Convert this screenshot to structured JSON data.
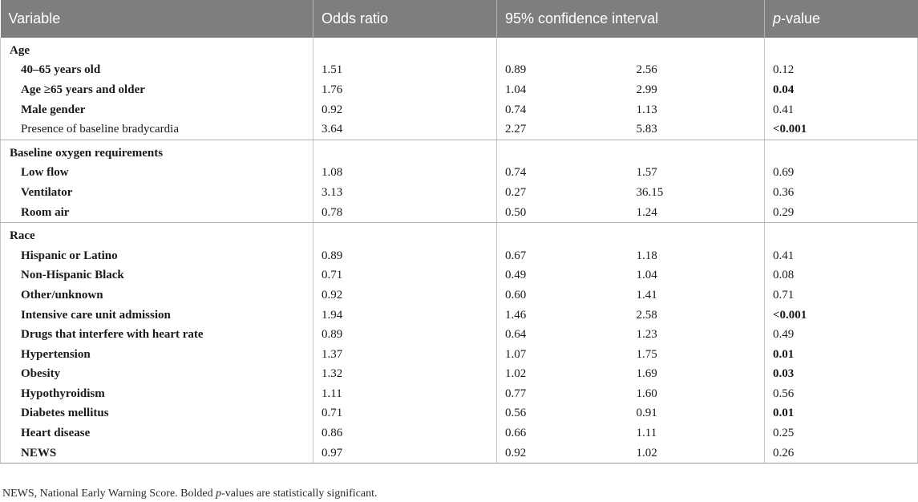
{
  "header": {
    "variable": "Variable",
    "odds_ratio": "Odds ratio",
    "ci": "95% confidence interval",
    "p_italic": "p",
    "p_rest": "-value"
  },
  "groups": [
    {
      "rows": [
        {
          "label": "Age",
          "or": "",
          "lo": "",
          "hi": "",
          "p": "",
          "label_bold": true,
          "indent": false,
          "p_bold": false
        },
        {
          "label": "40–65 years old",
          "or": "1.51",
          "lo": "0.89",
          "hi": "2.56",
          "p": "0.12",
          "label_bold": true,
          "indent": true,
          "p_bold": false
        },
        {
          "label": "Age ≥65 years and older",
          "or": "1.76",
          "lo": "1.04",
          "hi": "2.99",
          "p": "0.04",
          "label_bold": true,
          "indent": true,
          "p_bold": true
        },
        {
          "label": "Male gender",
          "or": "0.92",
          "lo": "0.74",
          "hi": "1.13",
          "p": "0.41",
          "label_bold": true,
          "indent": true,
          "p_bold": false
        },
        {
          "label": "Presence of baseline bradycardia",
          "or": "3.64",
          "lo": "2.27",
          "hi": "5.83",
          "p": "<0.001",
          "label_bold": false,
          "indent": true,
          "p_bold": true
        }
      ]
    },
    {
      "rows": [
        {
          "label": "Baseline oxygen requirements",
          "or": "",
          "lo": "",
          "hi": "",
          "p": "",
          "label_bold": true,
          "indent": false,
          "p_bold": false
        },
        {
          "label": "Low flow",
          "or": "1.08",
          "lo": "0.74",
          "hi": "1.57",
          "p": "0.69",
          "label_bold": true,
          "indent": true,
          "p_bold": false
        },
        {
          "label": "Ventilator",
          "or": "3.13",
          "lo": "0.27",
          "hi": "36.15",
          "p": "0.36",
          "label_bold": true,
          "indent": true,
          "p_bold": false
        },
        {
          "label": "Room air",
          "or": "0.78",
          "lo": "0.50",
          "hi": "1.24",
          "p": "0.29",
          "label_bold": true,
          "indent": true,
          "p_bold": false
        }
      ]
    },
    {
      "rows": [
        {
          "label": "Race",
          "or": "",
          "lo": "",
          "hi": "",
          "p": "",
          "label_bold": true,
          "indent": false,
          "p_bold": false
        },
        {
          "label": "Hispanic or Latino",
          "or": "0.89",
          "lo": "0.67",
          "hi": "1.18",
          "p": "0.41",
          "label_bold": true,
          "indent": true,
          "p_bold": false
        },
        {
          "label": "Non-Hispanic Black",
          "or": "0.71",
          "lo": "0.49",
          "hi": "1.04",
          "p": "0.08",
          "label_bold": true,
          "indent": true,
          "p_bold": false
        },
        {
          "label": "Other/unknown",
          "or": "0.92",
          "lo": "0.60",
          "hi": "1.41",
          "p": "0.71",
          "label_bold": true,
          "indent": true,
          "p_bold": false
        },
        {
          "label": "Intensive care unit admission",
          "or": "1.94",
          "lo": "1.46",
          "hi": "2.58",
          "p": "<0.001",
          "label_bold": true,
          "indent": true,
          "p_bold": true
        },
        {
          "label": "Drugs that interfere with heart rate",
          "or": "0.89",
          "lo": "0.64",
          "hi": "1.23",
          "p": "0.49",
          "label_bold": true,
          "indent": true,
          "p_bold": false
        },
        {
          "label": "Hypertension",
          "or": "1.37",
          "lo": "1.07",
          "hi": "1.75",
          "p": "0.01",
          "label_bold": true,
          "indent": true,
          "p_bold": true
        },
        {
          "label": "Obesity",
          "or": "1.32",
          "lo": "1.02",
          "hi": "1.69",
          "p": "0.03",
          "label_bold": true,
          "indent": true,
          "p_bold": true
        },
        {
          "label": "Hypothyroidism",
          "or": "1.11",
          "lo": "0.77",
          "hi": "1.60",
          "p": "0.56",
          "label_bold": true,
          "indent": true,
          "p_bold": false
        },
        {
          "label": "Diabetes mellitus",
          "or": "0.71",
          "lo": "0.56",
          "hi": "0.91",
          "p": "0.01",
          "label_bold": true,
          "indent": true,
          "p_bold": true
        },
        {
          "label": "Heart disease",
          "or": "0.86",
          "lo": "0.66",
          "hi": "1.11",
          "p": "0.25",
          "label_bold": true,
          "indent": true,
          "p_bold": false
        },
        {
          "label": "NEWS",
          "or": "0.97",
          "lo": "0.92",
          "hi": "1.02",
          "p": "0.26",
          "label_bold": true,
          "indent": true,
          "p_bold": false
        }
      ]
    }
  ],
  "footnote": {
    "part1": "NEWS, National Early Warning Score. Bolded ",
    "part_italic": "p",
    "part2": "-values are statistically significant."
  }
}
